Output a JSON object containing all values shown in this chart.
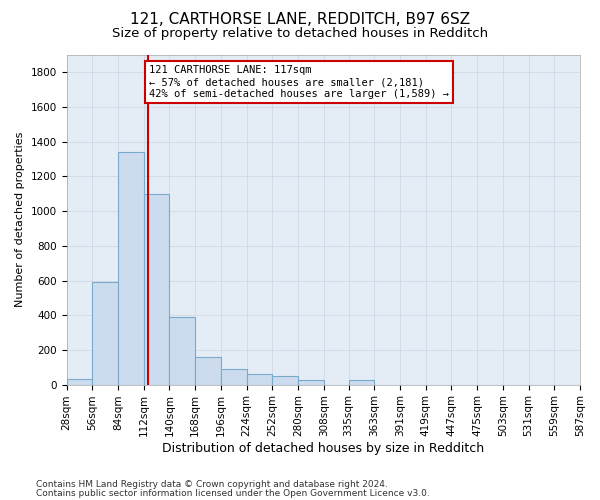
{
  "title1": "121, CARTHORSE LANE, REDDITCH, B97 6SZ",
  "title2": "Size of property relative to detached houses in Redditch",
  "xlabel": "Distribution of detached houses by size in Redditch",
  "ylabel": "Number of detached properties",
  "footer1": "Contains HM Land Registry data © Crown copyright and database right 2024.",
  "footer2": "Contains public sector information licensed under the Open Government Licence v3.0.",
  "bin_edges": [
    28,
    56,
    84,
    112,
    140,
    168,
    196,
    224,
    252,
    280,
    308,
    335,
    363,
    391,
    419,
    447,
    475,
    503,
    531,
    559,
    587
  ],
  "bar_heights": [
    30,
    590,
    1340,
    1100,
    390,
    160,
    90,
    60,
    50,
    25,
    0,
    25,
    0,
    0,
    0,
    0,
    0,
    0,
    0,
    0
  ],
  "bar_color": "#ccdcee",
  "bar_edge_color": "#7aaacb",
  "property_size": 117,
  "vline_color": "#cc0000",
  "annotation_line1": "121 CARTHORSE LANE: 117sqm",
  "annotation_line2": "← 57% of detached houses are smaller (2,181)",
  "annotation_line3": "42% of semi-detached houses are larger (1,589) →",
  "annotation_box_color": "#ffffff",
  "annotation_box_edge": "#cc0000",
  "ylim": [
    0,
    1900
  ],
  "yticks": [
    0,
    200,
    400,
    600,
    800,
    1000,
    1200,
    1400,
    1600,
    1800
  ],
  "background_color": "#ffffff",
  "plot_bg_color": "#e4edf6",
  "grid_color": "#d0d8e4",
  "title1_fontsize": 11,
  "title2_fontsize": 9.5,
  "xlabel_fontsize": 9,
  "ylabel_fontsize": 8,
  "tick_fontsize": 7.5,
  "footer_fontsize": 6.5,
  "annot_fontsize": 7.5
}
